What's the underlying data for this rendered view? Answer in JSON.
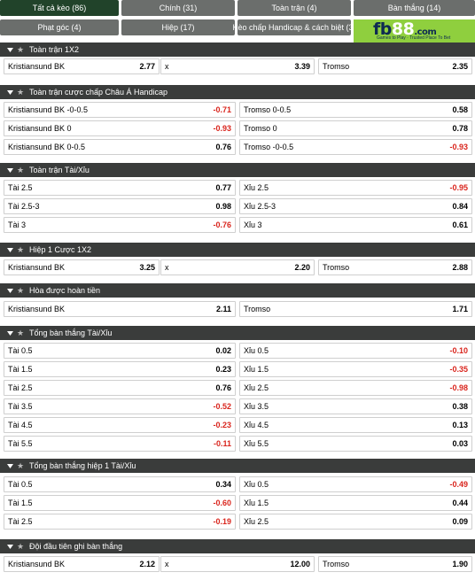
{
  "tabs": [
    {
      "label": "Tất cả kèo (86)",
      "active": true
    },
    {
      "label": "Chính (31)"
    },
    {
      "label": "Toàn trận (4)"
    },
    {
      "label": "Bàn thắng (14)"
    },
    {
      "label": "Phạt góc (4)"
    },
    {
      "label": "Hiệp (17)"
    },
    {
      "label": "Kèo chấp Handicap & cách biệt (3)"
    }
  ],
  "logo": {
    "brand": "fb",
    "num": "88",
    "domain": ".com",
    "tagline": "Games to Play · Trusted Place To Bet"
  },
  "sections": [
    {
      "title": "Toàn trận 1X2",
      "rows": [
        [
          {
            "label": "Kristiansund BK",
            "odd": "2.77"
          },
          {
            "label": "x",
            "odd": "3.39"
          },
          {
            "label": "Tromso",
            "odd": "2.35"
          }
        ]
      ]
    },
    {
      "title": "Toàn trận cược chấp Châu Á Handicap",
      "rows": [
        [
          {
            "label": "Kristiansund BK -0-0.5",
            "odd": "-0.71"
          },
          {
            "label": "Tromso 0-0.5",
            "odd": "0.58"
          }
        ],
        [
          {
            "label": "Kristiansund BK 0",
            "odd": "-0.93"
          },
          {
            "label": "Tromso 0",
            "odd": "0.78"
          }
        ],
        [
          {
            "label": "Kristiansund BK 0-0.5",
            "odd": "0.76"
          },
          {
            "label": "Tromso -0-0.5",
            "odd": "-0.93"
          }
        ]
      ]
    },
    {
      "title": "Toàn trận Tài/Xỉu",
      "rows": [
        [
          {
            "label": "Tài 2.5",
            "odd": "0.77"
          },
          {
            "label": "Xỉu 2.5",
            "odd": "-0.95"
          }
        ],
        [
          {
            "label": "Tài 2.5-3",
            "odd": "0.98"
          },
          {
            "label": "Xỉu 2.5-3",
            "odd": "0.84"
          }
        ],
        [
          {
            "label": "Tài 3",
            "odd": "-0.76"
          },
          {
            "label": "Xỉu 3",
            "odd": "0.61"
          }
        ]
      ]
    },
    {
      "title": "Hiệp 1 Cược 1X2",
      "rows": [
        [
          {
            "label": "Kristiansund BK",
            "odd": "3.25"
          },
          {
            "label": "x",
            "odd": "2.20"
          },
          {
            "label": "Tromso",
            "odd": "2.88"
          }
        ]
      ]
    },
    {
      "title": "Hòa được hoàn tiền",
      "rows": [
        [
          {
            "label": "Kristiansund BK",
            "odd": "2.11"
          },
          {
            "label": "Tromso",
            "odd": "1.71"
          }
        ]
      ]
    },
    {
      "title": "Tổng bàn thắng Tài/Xỉu",
      "rows": [
        [
          {
            "label": "Tài 0.5",
            "odd": "0.02"
          },
          {
            "label": "Xỉu 0.5",
            "odd": "-0.10"
          }
        ],
        [
          {
            "label": "Tài 1.5",
            "odd": "0.23"
          },
          {
            "label": "Xỉu 1.5",
            "odd": "-0.35"
          }
        ],
        [
          {
            "label": "Tài 2.5",
            "odd": "0.76"
          },
          {
            "label": "Xỉu 2.5",
            "odd": "-0.98"
          }
        ],
        [
          {
            "label": "Tài 3.5",
            "odd": "-0.52"
          },
          {
            "label": "Xỉu 3.5",
            "odd": "0.38"
          }
        ],
        [
          {
            "label": "Tài 4.5",
            "odd": "-0.23"
          },
          {
            "label": "Xỉu 4.5",
            "odd": "0.13"
          }
        ],
        [
          {
            "label": "Tài 5.5",
            "odd": "-0.11"
          },
          {
            "label": "Xỉu 5.5",
            "odd": "0.03"
          }
        ]
      ]
    },
    {
      "title": "Tổng bàn thắng hiệp 1 Tài/Xỉu",
      "rows": [
        [
          {
            "label": "Tài 0.5",
            "odd": "0.34"
          },
          {
            "label": "Xỉu 0.5",
            "odd": "-0.49"
          }
        ],
        [
          {
            "label": "Tài 1.5",
            "odd": "-0.60"
          },
          {
            "label": "Xỉu 1.5",
            "odd": "0.44"
          }
        ],
        [
          {
            "label": "Tài 2.5",
            "odd": "-0.19"
          },
          {
            "label": "Xỉu 2.5",
            "odd": "0.09"
          }
        ]
      ]
    },
    {
      "title": "Đội đầu tiên ghi bàn thắng",
      "rows": [
        [
          {
            "label": "Kristiansund BK",
            "odd": "2.12"
          },
          {
            "label": "x",
            "odd": "12.00"
          },
          {
            "label": "Tromso",
            "odd": "1.90"
          }
        ]
      ]
    }
  ],
  "colors": {
    "negative": "#d9251d",
    "header_bg": "#3a3c3b",
    "tab_bg": "#6b6e6c",
    "tab_active": "#21432a",
    "logo_bg": "#8fcf3e"
  }
}
